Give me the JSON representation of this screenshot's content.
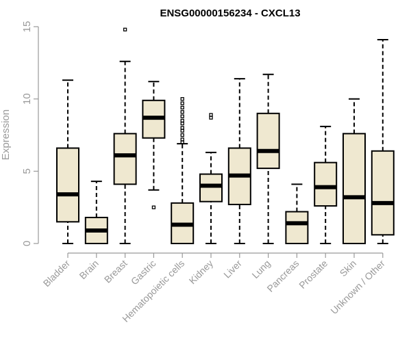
{
  "chart_data": {
    "type": "boxplot",
    "title": "ENSG00000156234 - CXCL13",
    "xlabel": "",
    "ylabel": "Expression",
    "ylim": [
      0,
      15
    ],
    "yticks": [
      0,
      5,
      10,
      15
    ],
    "grid": false,
    "box_color": "#efe8d0",
    "categories": [
      "Bladder",
      "Brain",
      "Breast",
      "Gastric",
      "Hematopoietic cells",
      "Kidney",
      "Liver",
      "Lung",
      "Pancreas",
      "Prostate",
      "Skin",
      "Unknown / Other"
    ],
    "boxes": [
      {
        "min": 0,
        "q1": 1.5,
        "median": 3.4,
        "q3": 6.6,
        "max": 11.3,
        "outliers": []
      },
      {
        "min": 0,
        "q1": 0,
        "median": 0.9,
        "q3": 1.8,
        "max": 4.3,
        "outliers": []
      },
      {
        "min": 0,
        "q1": 4.1,
        "median": 6.1,
        "q3": 7.6,
        "max": 12.6,
        "outliers": [
          14.8
        ]
      },
      {
        "min": 3.7,
        "q1": 7.3,
        "median": 8.7,
        "q3": 9.9,
        "max": 11.2,
        "outliers": [
          2.5
        ]
      },
      {
        "min": 0,
        "q1": 0,
        "median": 1.3,
        "q3": 2.8,
        "max": 6.9,
        "outliers": [
          7.0,
          7.2,
          7.5,
          7.8,
          8.0,
          8.3,
          8.5,
          8.8,
          9.1,
          9.4,
          9.7,
          10.0
        ]
      },
      {
        "min": 0,
        "q1": 2.9,
        "median": 4.0,
        "q3": 4.8,
        "max": 6.3,
        "outliers": [
          8.7,
          8.9
        ]
      },
      {
        "min": 0,
        "q1": 2.7,
        "median": 4.7,
        "q3": 6.6,
        "max": 11.4,
        "outliers": []
      },
      {
        "min": 0,
        "q1": 5.2,
        "median": 6.4,
        "q3": 9.0,
        "max": 11.7,
        "outliers": []
      },
      {
        "min": 0,
        "q1": 0,
        "median": 1.4,
        "q3": 2.2,
        "max": 4.1,
        "outliers": []
      },
      {
        "min": 0,
        "q1": 2.6,
        "median": 3.9,
        "q3": 5.6,
        "max": 8.1,
        "outliers": []
      },
      {
        "min": 0,
        "q1": 0,
        "median": 3.2,
        "q3": 7.6,
        "max": 10.0,
        "outliers": []
      },
      {
        "min": 0,
        "q1": 0.6,
        "median": 2.8,
        "q3": 6.4,
        "max": 14.1,
        "outliers": []
      }
    ]
  }
}
